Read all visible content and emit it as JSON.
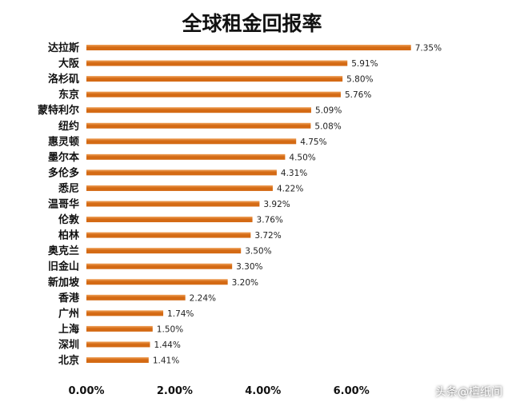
{
  "colors": {
    "bar": "#d46a14",
    "bar_highlight": "#f0a25a",
    "background": "#ffffff",
    "axis": "#999999"
  },
  "watermark": "头条@檀纸间",
  "chart_data": {
    "type": "bar",
    "orientation": "horizontal",
    "title": "全球租金回报率",
    "categories": [
      "达拉斯",
      "大阪",
      "洛杉矶",
      "东京",
      "蒙特利尔",
      "纽约",
      "惠灵顿",
      "墨尔本",
      "多伦多",
      "悉尼",
      "温哥华",
      "伦敦",
      "柏林",
      "奥克兰",
      "旧金山",
      "新加坡",
      "香港",
      "广州",
      "上海",
      "深圳",
      "北京"
    ],
    "values": [
      7.35,
      5.91,
      5.8,
      5.76,
      5.09,
      5.08,
      4.75,
      4.5,
      4.31,
      4.22,
      3.92,
      3.76,
      3.72,
      3.5,
      3.3,
      3.2,
      2.24,
      1.74,
      1.5,
      1.44,
      1.41
    ],
    "value_labels": [
      "7.35%",
      "5.91%",
      "5.80%",
      "5.76%",
      "5.09%",
      "5.08%",
      "4.75%",
      "4.50%",
      "4.31%",
      "4.22%",
      "3.92%",
      "3.76%",
      "3.72%",
      "3.50%",
      "3.30%",
      "3.20%",
      "2.24%",
      "1.74%",
      "1.50%",
      "1.44%",
      "1.41%"
    ],
    "x_ticks": [
      "0.00%",
      "2.00%",
      "4.00%",
      "6.00%"
    ],
    "x_tick_values": [
      0,
      2,
      4,
      6
    ],
    "xlim": [
      0,
      8
    ],
    "xlabel": "",
    "ylabel": "",
    "grid": false,
    "legend": "none"
  }
}
